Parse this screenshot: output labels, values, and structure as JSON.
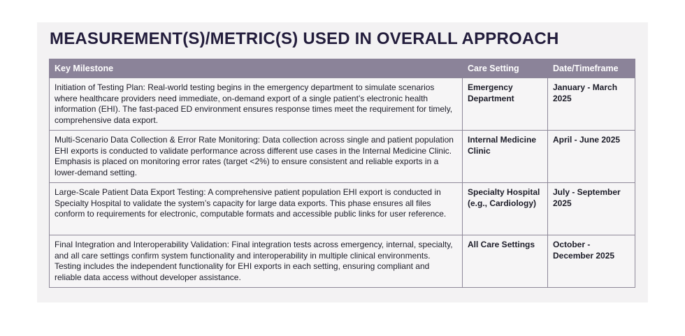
{
  "header": {
    "title": "MEASUREMENT(S)/METRIC(S) USED IN OVERALL APPROACH"
  },
  "table": {
    "headers": [
      "Key Milestone",
      "Care Setting",
      "Date/Timeframe"
    ],
    "rows": [
      [
        "Initiation of Testing Plan: Real-world testing begins in the emergency department to simulate scenarios where healthcare providers need immediate, on-demand export of a single patient’s electronic health information (EHI). The fast-paced ED environment ensures response times meet the requirement for timely, comprehensive data export.",
        "Emergency Department",
        "January - March 2025"
      ],
      [
        "Multi-Scenario Data Collection & Error Rate Monitoring: Data collection across single and patient population EHI exports is conducted to validate performance across different use cases in the Internal Medicine Clinic. Emphasis is placed on monitoring error rates (target <2%) to ensure consistent and reliable exports in a lower-demand setting.",
        "Internal Medicine Clinic",
        "April - June 2025"
      ],
      [
        "Large-Scale Patient Data Export Testing: A comprehensive patient population EHI export is conducted in Specialty Hospital to validate the system’s capacity for large data exports. This phase ensures all files conform to requirements for electronic, computable formats and accessible public links for user reference.",
        "Specialty Hospital (e.g., Cardiology)",
        "July - September 2025"
      ],
      [
        "Final Integration and Interoperability Validation: Final integration tests across emergency, internal, specialty, and all care settings confirm system functionality and interoperability in multiple clinical environments. Testing includes the independent functionality for EHI exports in each setting, ensuring compliant and reliable data access without developer assistance.",
        "All Care Settings",
        "October - December 2025"
      ]
    ]
  }
}
